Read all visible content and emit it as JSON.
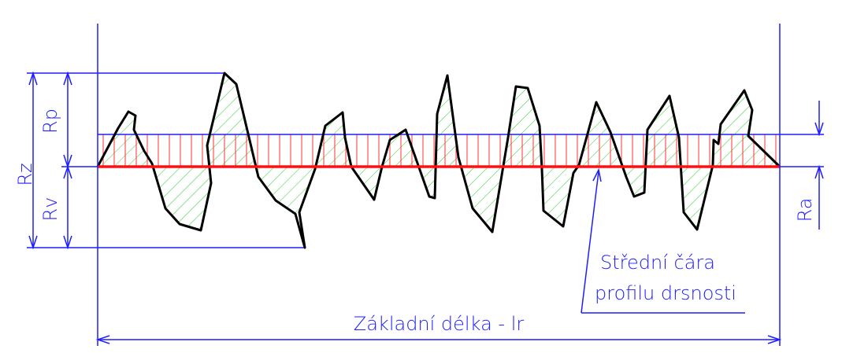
{
  "labels": {
    "rz": "Rz",
    "rp": "Rp",
    "rv": "Rv",
    "ra": "Ra",
    "mean_line_1": "Střední čára",
    "mean_line_2": "profilu drsnosti",
    "sampling_length": "Základní délka - lr"
  },
  "colors": {
    "dimension": "#1e1eff",
    "mean_line": "#ff1010",
    "profile": "#000000",
    "hatch_peaks": "#2ecc2e",
    "hatch_ra": "#ff3030"
  }
}
